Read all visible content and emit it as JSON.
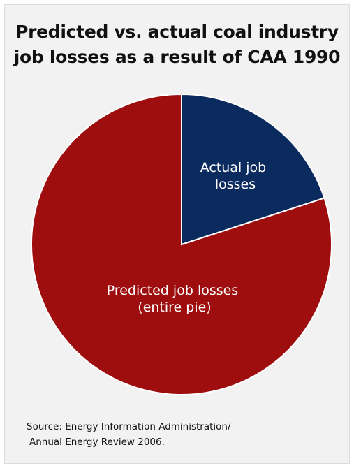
{
  "chart_data": {
    "type": "pie",
    "title_lines": [
      "Predicted vs. actual coal industry",
      "job losses as a result of CAA 1990"
    ],
    "slices": [
      {
        "label_lines": [
          "Actual job",
          "losses"
        ],
        "value": 20,
        "color": "#0b2a5e"
      },
      {
        "label_lines": [
          "Predicted job losses",
          "(entire pie)"
        ],
        "value": 80,
        "color": "#9e0e0e"
      }
    ],
    "source_lines": [
      "Source: Energy Information Administration/",
      "Annual Energy Review 2006."
    ]
  }
}
